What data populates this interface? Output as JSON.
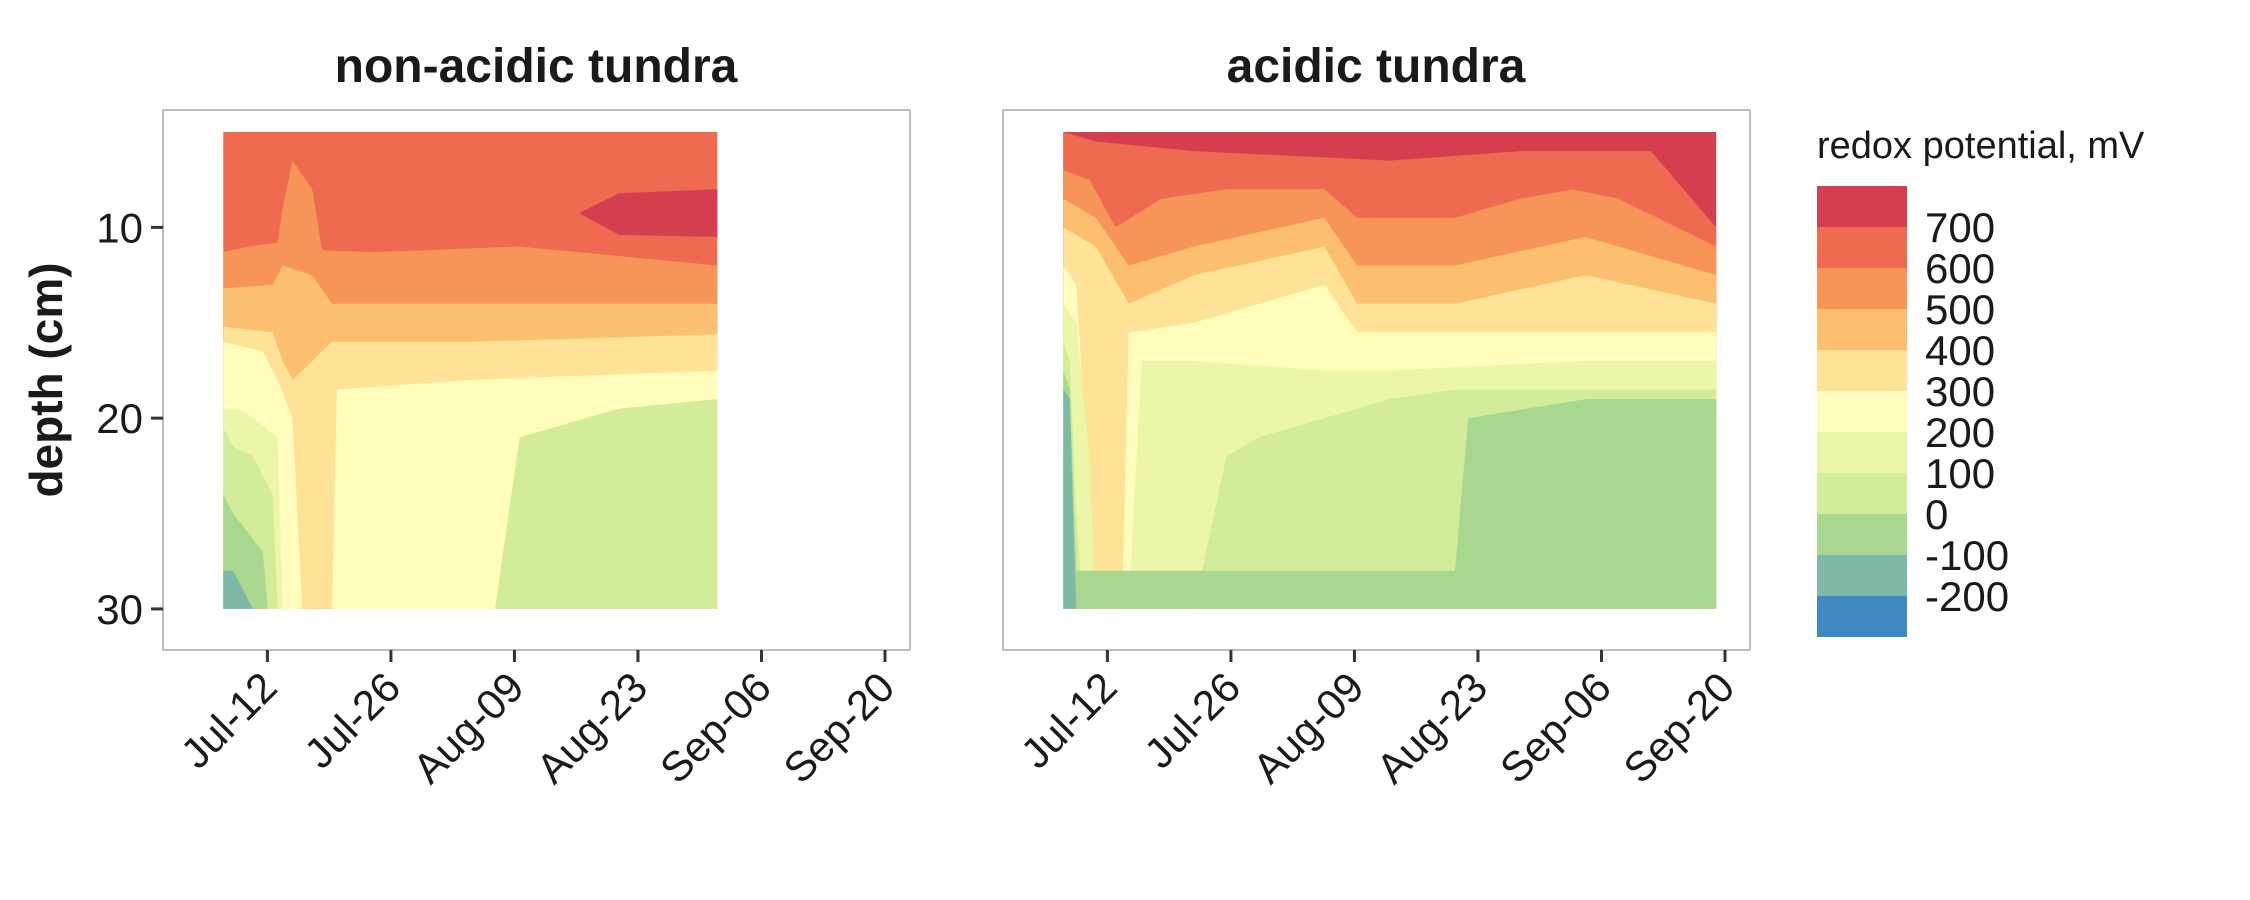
{
  "chart_data": [
    {
      "type": "heatmap",
      "title": "non-acidic tundra",
      "ylabel": "depth (cm)",
      "x_ticks": [
        "Jul-12",
        "Jul-26",
        "Aug-09",
        "Aug-23",
        "Sep-06",
        "Sep-20"
      ],
      "y_ticks": [
        10,
        20,
        30
      ],
      "xlim": [
        "2015-07-03",
        "2015-09-20"
      ],
      "ylim": [
        5,
        31
      ],
      "y_reversed": true,
      "data_range": {
        "x": [
          "2015-07-07",
          "2015-09-01"
        ],
        "y": [
          5,
          30
        ]
      },
      "boundaries": [
        {
          "level": 600,
          "depth_points": [
            [
              0,
              11.3
            ],
            [
              0.05,
              11.0
            ],
            [
              0.11,
              10.8
            ],
            [
              0.12,
              9.0
            ],
            [
              0.14,
              6.5
            ],
            [
              0.18,
              8.0
            ],
            [
              0.2,
              11.2
            ],
            [
              0.3,
              11.3
            ],
            [
              0.6,
              11.0
            ],
            [
              1.0,
              12.0
            ]
          ]
        },
        {
          "level": 500,
          "depth_points": [
            [
              0,
              13.2
            ],
            [
              0.1,
              13.0
            ],
            [
              0.12,
              12.0
            ],
            [
              0.18,
              12.5
            ],
            [
              0.22,
              14.0
            ],
            [
              0.5,
              14.0
            ],
            [
              1.0,
              14.0
            ]
          ]
        },
        {
          "level": 400,
          "depth_points": [
            [
              0,
              15.2
            ],
            [
              0.1,
              15.5
            ],
            [
              0.12,
              17.0
            ],
            [
              0.14,
              18.0
            ],
            [
              0.18,
              17.0
            ],
            [
              0.22,
              16.0
            ],
            [
              0.5,
              16.0
            ],
            [
              1.0,
              15.6
            ]
          ]
        },
        {
          "level": 300,
          "depth_points": [
            [
              0,
              16.0
            ],
            [
              0.08,
              16.5
            ],
            [
              0.11,
              18.0
            ],
            [
              0.14,
              20.0
            ],
            [
              0.16,
              30.0
            ],
            [
              0.22,
              30.0
            ],
            [
              0.23,
              18.5
            ],
            [
              0.5,
              18.0
            ],
            [
              1.0,
              17.5
            ]
          ]
        },
        {
          "level": 200,
          "depth_points": [
            [
              0,
              19.5
            ],
            [
              0.03,
              19.5
            ],
            [
              0.06,
              20.0
            ],
            [
              0.11,
              21.0
            ],
            [
              0.12,
              30.0
            ],
            [
              0.5,
              30.0
            ],
            [
              1.0,
              30.0
            ]
          ]
        },
        {
          "level": 100,
          "depth_points": [
            [
              0,
              20.5
            ],
            [
              0.02,
              21.5
            ],
            [
              0.06,
              22.0
            ],
            [
              0.1,
              24.0
            ],
            [
              0.11,
              30.0
            ],
            [
              0.55,
              30.0
            ],
            [
              0.6,
              21.0
            ],
            [
              0.8,
              19.5
            ],
            [
              1.0,
              19.0
            ]
          ]
        },
        {
          "level": 0,
          "depth_points": [
            [
              0,
              24.0
            ],
            [
              0.02,
              25.0
            ],
            [
              0.05,
              26.0
            ],
            [
              0.08,
              27.0
            ],
            [
              0.09,
              30.0
            ]
          ]
        },
        {
          "level": -100,
          "depth_points": [
            [
              0,
              28.0
            ],
            [
              0.02,
              28.0
            ],
            [
              0.04,
              29.0
            ],
            [
              0.06,
              30.0
            ]
          ]
        }
      ],
      "hotspot": {
        "level": 700,
        "x_range": [
          0.72,
          1.0
        ],
        "depth_range": [
          8.0,
          10.5
        ]
      }
    },
    {
      "type": "heatmap",
      "title": "acidic tundra",
      "x_ticks": [
        "Jul-12",
        "Jul-26",
        "Aug-09",
        "Aug-23",
        "Sep-06",
        "Sep-20"
      ],
      "y_ticks": [
        10,
        20,
        30
      ],
      "xlim": [
        "2015-07-03",
        "2015-09-20"
      ],
      "ylim": [
        5,
        31
      ],
      "y_reversed": true,
      "data_range": {
        "x": [
          "2015-07-07",
          "2015-09-19"
        ],
        "y": [
          5,
          30
        ]
      },
      "boundaries": [
        {
          "level": 700,
          "depth_points": [
            [
              0,
              5.0
            ],
            [
              0.05,
              5.5
            ],
            [
              0.2,
              6.0
            ],
            [
              0.5,
              6.5
            ],
            [
              0.7,
              6.0
            ],
            [
              0.8,
              6.0
            ],
            [
              0.9,
              6.0
            ],
            [
              1.0,
              10.0
            ]
          ]
        },
        {
          "level": 600,
          "depth_points": [
            [
              0,
              7.0
            ],
            [
              0.04,
              7.5
            ],
            [
              0.08,
              10.0
            ],
            [
              0.15,
              8.5
            ],
            [
              0.25,
              8.0
            ],
            [
              0.4,
              8.0
            ],
            [
              0.45,
              9.5
            ],
            [
              0.6,
              9.5
            ],
            [
              0.7,
              8.5
            ],
            [
              0.78,
              8.0
            ],
            [
              0.85,
              8.5
            ],
            [
              1.0,
              11.0
            ]
          ]
        },
        {
          "level": 500,
          "depth_points": [
            [
              0,
              8.5
            ],
            [
              0.05,
              9.5
            ],
            [
              0.1,
              12.0
            ],
            [
              0.2,
              11.0
            ],
            [
              0.4,
              9.5
            ],
            [
              0.45,
              12.0
            ],
            [
              0.6,
              12.0
            ],
            [
              0.8,
              10.5
            ],
            [
              1.0,
              12.5
            ]
          ]
        },
        {
          "level": 400,
          "depth_points": [
            [
              0,
              10.0
            ],
            [
              0.05,
              11.0
            ],
            [
              0.1,
              14.0
            ],
            [
              0.2,
              12.5
            ],
            [
              0.4,
              11.0
            ],
            [
              0.45,
              14.0
            ],
            [
              0.6,
              14.0
            ],
            [
              0.8,
              12.5
            ],
            [
              1.0,
              14.0
            ]
          ]
        },
        {
          "level": 300,
          "depth_points": [
            [
              0,
              12.0
            ],
            [
              0.02,
              13.0
            ],
            [
              0.05,
              30.0
            ],
            [
              0.09,
              30.0
            ],
            [
              0.1,
              15.5
            ],
            [
              0.2,
              15.0
            ],
            [
              0.4,
              13.0
            ],
            [
              0.45,
              15.5
            ],
            [
              0.6,
              15.5
            ],
            [
              0.8,
              15.5
            ],
            [
              1.0,
              15.5
            ]
          ]
        },
        {
          "level": 200,
          "depth_points": [
            [
              0,
              14.0
            ],
            [
              0.02,
              15.0
            ],
            [
              0.04,
              22.0
            ],
            [
              0.05,
              30.0
            ],
            [
              0.1,
              30.0
            ],
            [
              0.12,
              17.0
            ],
            [
              0.2,
              17.0
            ],
            [
              0.4,
              17.5
            ],
            [
              0.5,
              17.5
            ],
            [
              0.8,
              17.0
            ],
            [
              1.0,
              17.0
            ]
          ]
        },
        {
          "level": 100,
          "depth_points": [
            [
              0,
              16.0
            ],
            [
              0.01,
              17.0
            ],
            [
              0.02,
              25.0
            ],
            [
              0.03,
              30.0
            ],
            [
              0.2,
              30.0
            ],
            [
              0.25,
              22.0
            ],
            [
              0.3,
              21.0
            ],
            [
              0.5,
              19.0
            ],
            [
              0.6,
              18.5
            ],
            [
              0.8,
              18.5
            ],
            [
              1.0,
              18.5
            ]
          ]
        },
        {
          "level": 0,
          "depth_points": [
            [
              0,
              17.5
            ],
            [
              0.01,
              18.5
            ],
            [
              0.02,
              28.0
            ],
            [
              0.6,
              28.0
            ],
            [
              0.62,
              20.0
            ],
            [
              0.8,
              19.0
            ],
            [
              1.0,
              19.0
            ]
          ]
        },
        {
          "level": -100,
          "depth_points": [
            [
              0,
              18.5
            ],
            [
              0.01,
              19.0
            ],
            [
              0.015,
              25.0
            ],
            [
              0.02,
              30.0
            ]
          ]
        }
      ]
    }
  ],
  "legend": {
    "title": "redox potential, mV",
    "labels": [
      "700",
      "600",
      "500",
      "400",
      "300",
      "200",
      "100",
      "0",
      "-100",
      "-200"
    ],
    "colors": [
      "#d53e4f",
      "#f46d43",
      "#fdae61",
      "#fee08b",
      "#ffffbf",
      "#e6f598",
      "#abdda4",
      "#66c2a5",
      "#3288bd",
      "#5e4fa2"
    ]
  },
  "level_colors": {
    "800": "#d53e4f",
    "700": "#ee6a50",
    "600": "#f79457",
    "500": "#fcbf6f",
    "400": "#fde298",
    "300": "#fffcbc",
    "200": "#ecf6a8",
    "100": "#d2ec9a",
    "0": "#a8d88f",
    "-100": "#7eb9a8",
    "-200": "#3f88c2"
  },
  "legend_swatches": [
    "#d53e4f",
    "#ee6a50",
    "#f79457",
    "#fcbf6f",
    "#fde298",
    "#fffcbc",
    "#ecf6a8",
    "#d2ec9a",
    "#a8d88f",
    "#7eb9a8",
    "#3f88c2"
  ]
}
